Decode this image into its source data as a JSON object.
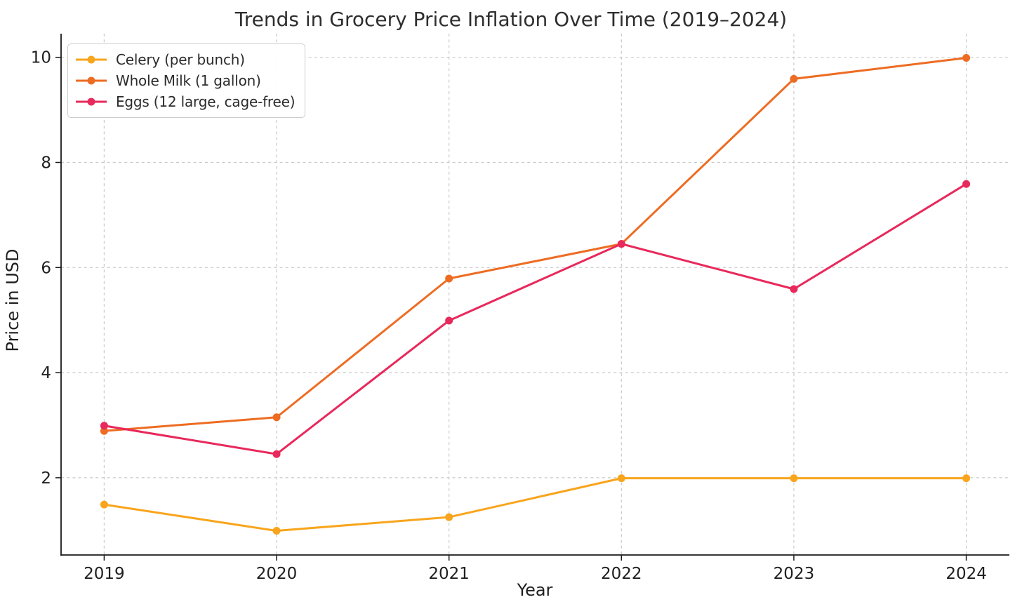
{
  "chart_data": {
    "type": "line",
    "title": "Trends in Grocery Price Inflation Over Time (2019–2024)",
    "xlabel": "Year",
    "ylabel": "Price in USD",
    "x": [
      2019,
      2020,
      2021,
      2022,
      2023,
      2024
    ],
    "x_tick_labels": [
      "2019",
      "2020",
      "2021",
      "2022",
      "2023",
      "2024"
    ],
    "yticks": [
      2,
      4,
      6,
      8,
      10
    ],
    "y_tick_labels": [
      "2",
      "4",
      "6",
      "8",
      "10"
    ],
    "xlim": [
      2018.75,
      2024.25
    ],
    "ylim": [
      0.53,
      10.45
    ],
    "grid": true,
    "grid_style": "dashed",
    "legend_position": "upper-left",
    "series": [
      {
        "name": "Celery (per bunch)",
        "color": "#F8A51D",
        "marker": "circle",
        "values": [
          1.49,
          0.99,
          1.25,
          1.99,
          1.99,
          1.99
        ]
      },
      {
        "name": "Whole Milk (1 gallon)",
        "color": "#ED6C23",
        "marker": "circle",
        "values": [
          2.89,
          3.15,
          5.79,
          6.45,
          9.59,
          9.99
        ]
      },
      {
        "name": "Eggs (12 large, cage-free)",
        "color": "#E8295B",
        "marker": "circle",
        "values": [
          2.99,
          2.45,
          4.99,
          6.45,
          5.59,
          7.59
        ]
      }
    ],
    "colors": {
      "background": "#ffffff",
      "grid": "#c9c9c9",
      "axis": "#1a1a1a",
      "text": "#1f1f1f",
      "legend_border": "#cccccc"
    }
  }
}
